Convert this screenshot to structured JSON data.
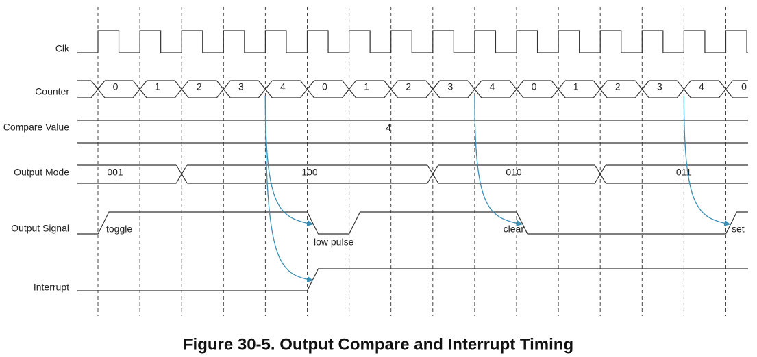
{
  "signals": [
    "Clk",
    "Counter",
    "Compare Value",
    "Output Mode",
    "Output Signal",
    "Interrupt"
  ],
  "counter_values": [
    "0",
    "1",
    "2",
    "3",
    "4",
    "0",
    "1",
    "2",
    "3",
    "4",
    "0",
    "1",
    "2",
    "3",
    "4",
    "0"
  ],
  "compare_value": "4",
  "output_modes": [
    "001",
    "100",
    "010",
    "011"
  ],
  "output_annotations": [
    "toggle",
    "low pulse",
    "clear",
    "set"
  ],
  "caption": "Figure 30-5. Output Compare and Interrupt Timing"
}
